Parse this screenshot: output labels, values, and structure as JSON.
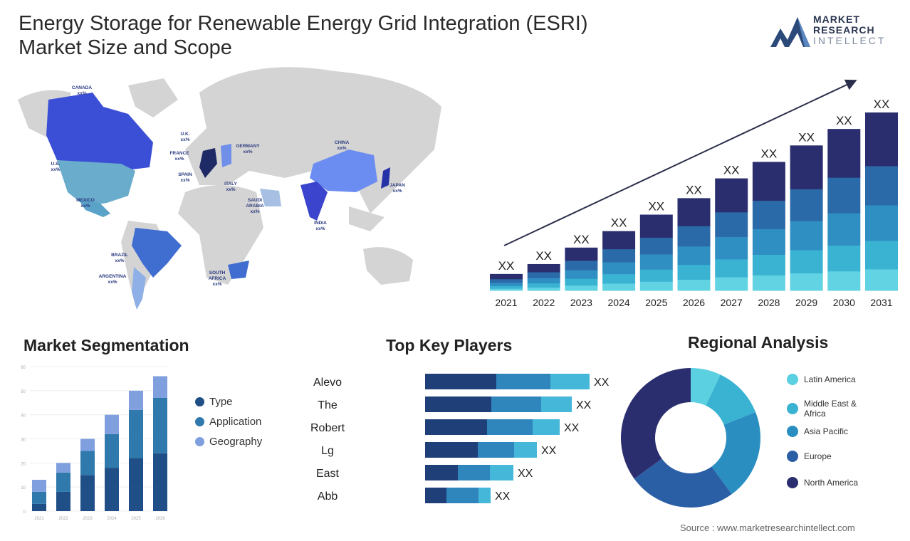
{
  "title_line1": "Energy Storage for Renewable Energy Grid Integration (ESRI)",
  "title_line2": "Market Size and Scope",
  "logo": {
    "line1": "MARKET",
    "line2": "RESEARCH",
    "line3": "INTELLECT"
  },
  "colors": {
    "navy": "#2b2e6e",
    "blue": "#2b6aa8",
    "mid": "#2f8fc2",
    "light": "#3ab3d3",
    "cyan": "#62d3e3",
    "map_gray": "#d4d4d4"
  },
  "map": {
    "labels": [
      {
        "name": "CANADA",
        "value": "xx%"
      },
      {
        "name": "U.S.",
        "value": "xx%"
      },
      {
        "name": "MEXICO",
        "value": "xx%"
      },
      {
        "name": "BRAZIL",
        "value": "xx%"
      },
      {
        "name": "ARGENTINA",
        "value": "xx%"
      },
      {
        "name": "U.K.",
        "value": "xx%"
      },
      {
        "name": "FRANCE",
        "value": "xx%"
      },
      {
        "name": "SPAIN",
        "value": "xx%"
      },
      {
        "name": "GERMANY",
        "value": "xx%"
      },
      {
        "name": "ITALY",
        "value": "xx%"
      },
      {
        "name": "SAUDI ARABIA",
        "value": "xx%"
      },
      {
        "name": "SOUTH AFRICA",
        "value": "xx%"
      },
      {
        "name": "CHINA",
        "value": "xx%"
      },
      {
        "name": "INDIA",
        "value": "xx%"
      },
      {
        "name": "JAPAN",
        "value": "xx%"
      }
    ]
  },
  "chart_data": [
    {
      "type": "bar",
      "stacked": true,
      "categories": [
        "2021",
        "2022",
        "2023",
        "2024",
        "2025",
        "2026",
        "2027",
        "2028",
        "2029",
        "2030",
        "2031"
      ],
      "relative_totals": [
        10,
        16,
        26,
        36,
        46,
        56,
        68,
        78,
        88,
        98,
        108
      ],
      "data_labels": [
        "XX",
        "XX",
        "XX",
        "XX",
        "XX",
        "XX",
        "XX",
        "XX",
        "XX",
        "XX",
        "XX"
      ],
      "trend_arrow": true
    },
    {
      "type": "bar",
      "stacked": true,
      "title": "Market Segmentation",
      "categories": [
        "2021",
        "2022",
        "2023",
        "2024",
        "2025",
        "2026"
      ],
      "yticks": [
        0,
        10,
        20,
        30,
        40,
        50,
        60
      ],
      "ylim": [
        0,
        60
      ],
      "series": [
        {
          "name": "Type",
          "values": [
            3,
            8,
            15,
            18,
            22,
            24
          ]
        },
        {
          "name": "Application",
          "values": [
            5,
            8,
            10,
            14,
            20,
            23
          ]
        },
        {
          "name": "Geography",
          "values": [
            5,
            4,
            5,
            8,
            8,
            9
          ]
        }
      ],
      "legend": "right"
    },
    {
      "type": "bar",
      "orientation": "horizontal",
      "stacked": true,
      "title": "Top Key Players",
      "categories": [
        "Alevo",
        "The",
        "Robert",
        "Lg",
        "East",
        "Abb"
      ],
      "series": [
        {
          "values": [
            100,
            93,
            87,
            74,
            46,
            30
          ]
        },
        {
          "values": [
            76,
            70,
            64,
            51,
            45,
            45
          ]
        },
        {
          "values": [
            55,
            43,
            38,
            32,
            33,
            17
          ]
        }
      ],
      "data_labels": [
        "XX",
        "XX",
        "XX",
        "XX",
        "XX",
        "XX"
      ]
    },
    {
      "type": "pie",
      "donut": true,
      "title": "Regional Analysis",
      "labels": [
        "Latin America",
        "Middle East & Africa",
        "Asia Pacific",
        "Europe",
        "North America"
      ],
      "values": [
        7,
        12,
        21,
        25,
        35
      ],
      "legend": "right"
    }
  ],
  "source": "Source : www.marketresearchintellect.com"
}
